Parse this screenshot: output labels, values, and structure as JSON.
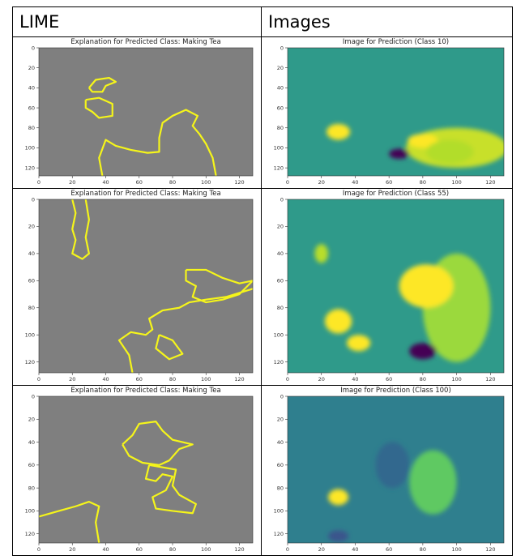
{
  "table": {
    "headers": [
      "LIME",
      "Images"
    ],
    "rows": [
      [
        {
          "title": "Explanation for Predicted Class: Making Tea",
          "xlim": [
            0,
            128
          ],
          "ylim": [
            0,
            128
          ],
          "xticks": [
            0,
            20,
            40,
            60,
            80,
            100,
            120
          ],
          "yticks": [
            0,
            20,
            40,
            60,
            80,
            100,
            120
          ]
        },
        {
          "title": "Image for Prediction (Class 10)",
          "xlim": [
            0,
            128
          ],
          "ylim": [
            0,
            128
          ],
          "xticks": [
            0,
            20,
            40,
            60,
            80,
            100,
            120
          ],
          "yticks": [
            0,
            20,
            40,
            60,
            80,
            100,
            120
          ]
        }
      ],
      [
        {
          "title": "Explanation for Predicted Class: Making Tea",
          "xlim": [
            0,
            128
          ],
          "ylim": [
            0,
            128
          ],
          "xticks": [
            0,
            20,
            40,
            60,
            80,
            100,
            120
          ],
          "yticks": [
            0,
            20,
            40,
            60,
            80,
            100,
            120
          ]
        },
        {
          "title": "Image for Prediction (Class 55)",
          "xlim": [
            0,
            128
          ],
          "ylim": [
            0,
            128
          ],
          "xticks": [
            0,
            20,
            40,
            60,
            80,
            100,
            120
          ],
          "yticks": [
            0,
            20,
            40,
            60,
            80,
            100,
            120
          ]
        }
      ],
      [
        {
          "title": "Explanation for Predicted Class: Making Tea",
          "xlim": [
            0,
            128
          ],
          "ylim": [
            0,
            128
          ],
          "xticks": [
            0,
            20,
            40,
            60,
            80,
            100,
            120
          ],
          "yticks": [
            0,
            20,
            40,
            60,
            80,
            100,
            120
          ]
        },
        {
          "title": "Image for Prediction (Class 100)",
          "xlim": [
            0,
            128
          ],
          "ylim": [
            0,
            128
          ],
          "xticks": [
            0,
            20,
            40,
            60,
            80,
            100,
            120
          ],
          "yticks": [
            0,
            20,
            40,
            60,
            80,
            100,
            120
          ]
        }
      ]
    ]
  }
}
